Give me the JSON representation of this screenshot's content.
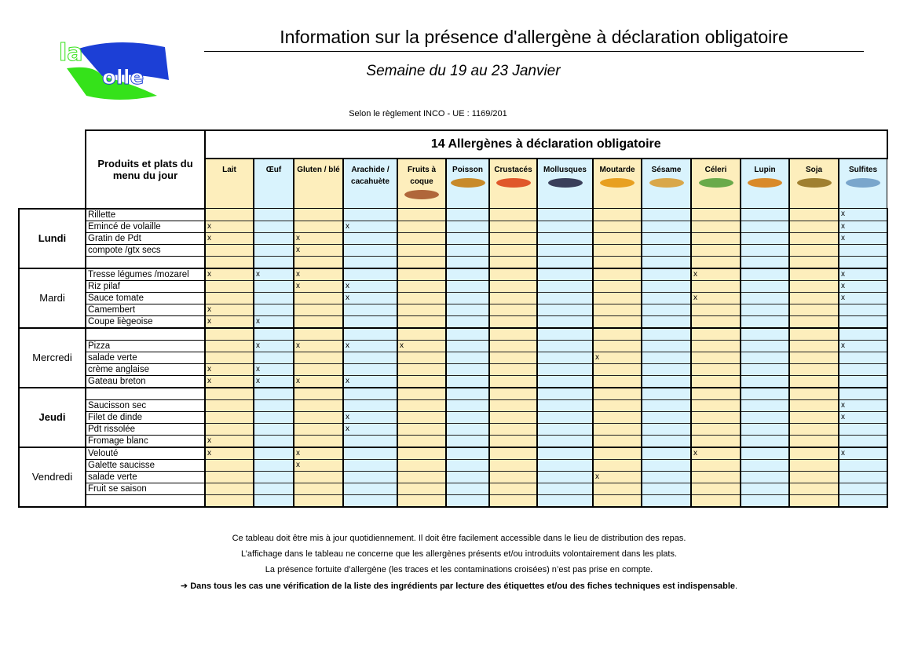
{
  "header": {
    "title": "Information sur la présence d'allergène à déclaration obligatoire",
    "subtitle": "Semaine du 19  au 23 Janvier",
    "regulation": "Selon le règlement INCO - UE : 1169/201",
    "logo_text": "la Bolle",
    "logo_colors": {
      "blue": "#1c3fd6",
      "green": "#35e21a"
    }
  },
  "table": {
    "products_header": "Produits et plats du menu du jour",
    "allergens_header": "14 Allergènes à déclaration obligatoire",
    "allergens": [
      {
        "label": "Lait",
        "color": "#fdeebc"
      },
      {
        "label": "Œuf",
        "color": "#d9f3fd"
      },
      {
        "label": "Gluten / blé",
        "color": "#fdeebc"
      },
      {
        "label": "Arachide / cacahuète",
        "color": "#d9f3fd"
      },
      {
        "label": "Fruits à coque",
        "color": "#fdeebc",
        "image": "nuts"
      },
      {
        "label": "Poisson",
        "color": "#d9f3fd",
        "image": "fish"
      },
      {
        "label": "Crustacés",
        "color": "#fdeebc",
        "image": "crab"
      },
      {
        "label": "Mollusques",
        "color": "#d9f3fd",
        "image": "mussels"
      },
      {
        "label": "Moutarde",
        "color": "#fdeebc",
        "image": "mustard"
      },
      {
        "label": "Sésame",
        "color": "#d9f3fd",
        "image": "burger"
      },
      {
        "label": "Céleri",
        "color": "#fdeebc",
        "image": "celery"
      },
      {
        "label": "Lupin",
        "color": "#d9f3fd",
        "image": "bread"
      },
      {
        "label": "Soja",
        "color": "#fdeebc",
        "image": "soy"
      },
      {
        "label": "Sulfites",
        "color": "#d9f3fd",
        "image": "wine"
      }
    ],
    "mark": "x",
    "days": [
      {
        "day": "Lundi",
        "bold": true,
        "dishes": [
          {
            "name": "Rillette",
            "marks": [
              13
            ]
          },
          {
            "name": "Emincé de volaille",
            "marks": [
              0,
              3,
              13
            ]
          },
          {
            "name": "Gratin de Pdt",
            "marks": [
              0,
              2,
              13
            ]
          },
          {
            "name": "compote /gtx secs",
            "marks": [
              2
            ]
          },
          {
            "name": "",
            "marks": []
          }
        ]
      },
      {
        "day": "Mardi",
        "bold": false,
        "dishes": [
          {
            "name": "Tresse légumes /mozarel",
            "marks": [
              0,
              1,
              2,
              10,
              13
            ]
          },
          {
            "name": "Riz pilaf",
            "marks": [
              2,
              3,
              13
            ]
          },
          {
            "name": "Sauce tomate",
            "marks": [
              3,
              10,
              13
            ]
          },
          {
            "name": "Camembert",
            "marks": [
              0
            ]
          },
          {
            "name": "Coupe liègeoise",
            "marks": [
              0,
              1
            ]
          }
        ]
      },
      {
        "day": "Mercredi",
        "bold": false,
        "dishes": [
          {
            "name": "",
            "marks": []
          },
          {
            "name": "Pizza",
            "marks": [
              1,
              2,
              3,
              4,
              13
            ]
          },
          {
            "name": "salade verte",
            "marks": [
              8
            ]
          },
          {
            "name": "crème anglaise",
            "marks": [
              0,
              1
            ]
          },
          {
            "name": "Gateau breton",
            "marks": [
              0,
              1,
              2,
              3
            ]
          }
        ]
      },
      {
        "day": "Jeudi",
        "bold": true,
        "dishes": [
          {
            "name": "",
            "marks": []
          },
          {
            "name": "Saucisson sec",
            "marks": [
              13
            ]
          },
          {
            "name": "Filet de dinde",
            "marks": [
              3,
              13
            ]
          },
          {
            "name": "Pdt rissolée",
            "marks": [
              3
            ]
          },
          {
            "name": "Fromage blanc",
            "marks": [
              0
            ]
          }
        ]
      },
      {
        "day": "Vendredi",
        "bold": false,
        "dishes": [
          {
            "name": "Velouté",
            "marks": [
              0,
              2,
              10,
              13
            ]
          },
          {
            "name": "Galette saucisse",
            "marks": [
              2
            ]
          },
          {
            "name": "salade verte",
            "marks": [
              8
            ]
          },
          {
            "name": "Fruit se saison",
            "marks": []
          },
          {
            "name": "",
            "marks": []
          }
        ]
      }
    ]
  },
  "footer": {
    "line1": "Ce tableau doit être mis à jour quotidiennement. Il doit être facilement accessible dans le lieu de distribution des repas.",
    "line2": "L’affichage dans le tableau ne concerne que les allergènes présents et/ou introduits volontairement dans les plats.",
    "line3": "La présence fortuite d’allergène (les traces et les contaminations croisées) n’est pas prise en compte.",
    "line4_arrow": "➔",
    "line4_bold": "Dans tous les cas une vérification de la liste des ingrédients par lecture des étiquettes et/ou des fiches techniques est indispensable",
    "line4_end": "."
  }
}
